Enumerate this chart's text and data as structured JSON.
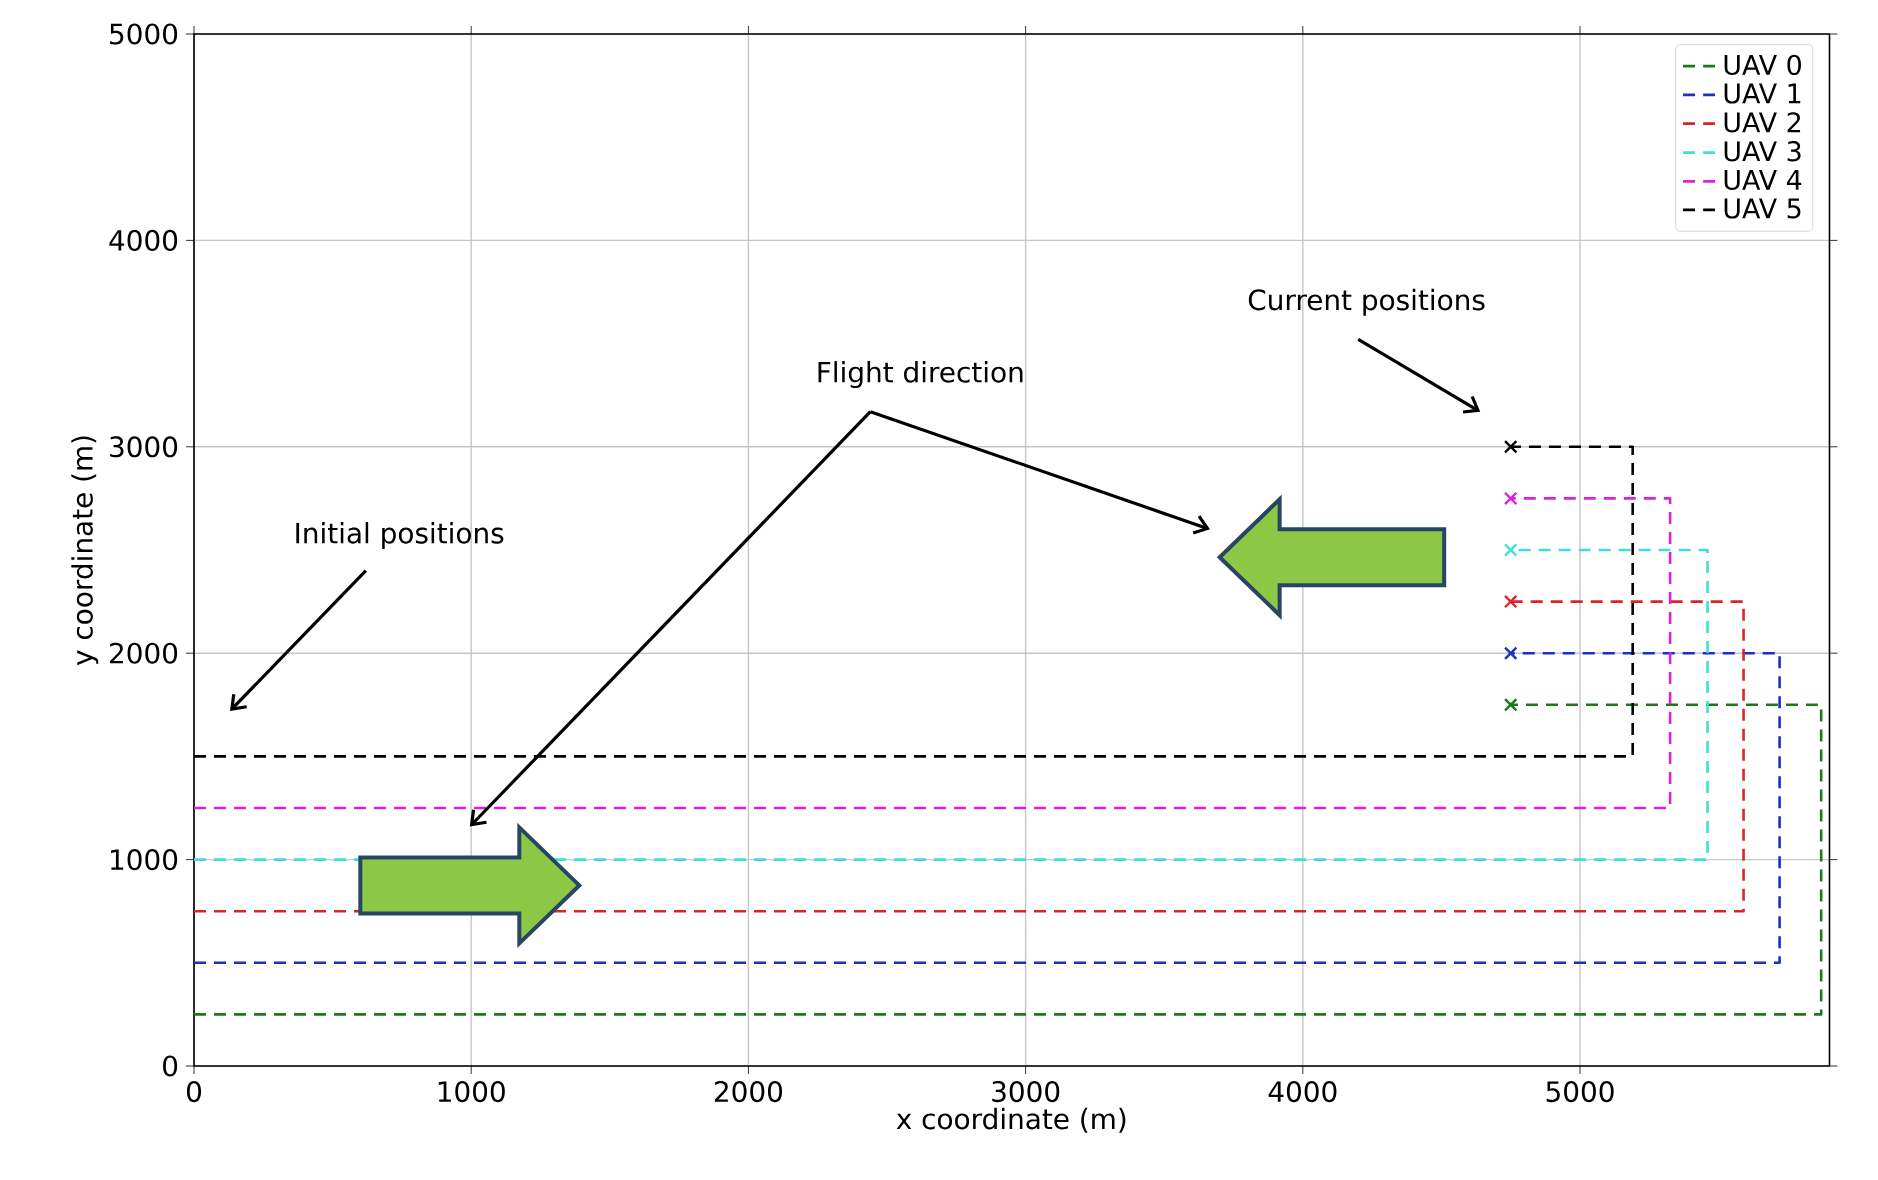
{
  "chart_data": {
    "type": "line",
    "xlabel": "x coordinate (m)",
    "ylabel": "y coordinate (m)",
    "xlim": [
      0,
      5900
    ],
    "ylim": [
      0,
      5000
    ],
    "xticks": [
      0,
      1000,
      2000,
      3000,
      4000,
      5000
    ],
    "yticks": [
      0,
      1000,
      2000,
      3000,
      4000,
      5000
    ],
    "grid": true,
    "legend": "top right",
    "line_style": "dashed",
    "series": [
      {
        "name": "UAV 0",
        "color": "#1a7a1a",
        "x": [
          0,
          5870,
          5870,
          4750
        ],
        "values": [
          250,
          250,
          1750,
          1750
        ]
      },
      {
        "name": "UAV 1",
        "color": "#1f2fbf",
        "x": [
          0,
          5720,
          5720,
          4750
        ],
        "values": [
          500,
          500,
          2000,
          2000
        ]
      },
      {
        "name": "UAV 2",
        "color": "#d62828",
        "x": [
          0,
          5590,
          5590,
          4750
        ],
        "values": [
          750,
          750,
          2250,
          2250
        ]
      },
      {
        "name": "UAV 3",
        "color": "#40e0d8",
        "x": [
          0,
          5460,
          5460,
          4750
        ],
        "values": [
          1000,
          1000,
          2500,
          2500
        ]
      },
      {
        "name": "UAV 4",
        "color": "#e020e0",
        "x": [
          0,
          5325,
          5325,
          4750
        ],
        "values": [
          1250,
          1250,
          2750,
          2750
        ]
      },
      {
        "name": "UAV 5",
        "color": "#000000",
        "x": [
          0,
          5190,
          5190,
          4750
        ],
        "values": [
          1500,
          1500,
          3000,
          3000
        ]
      },
      {
        "type": "scatter",
        "marker": "cross",
        "x": [
          4750,
          4750,
          4750,
          4750,
          4750,
          4750
        ],
        "values": [
          1750,
          2000,
          2250,
          2500,
          2750,
          3000
        ],
        "colors": [
          "#1a7a1a",
          "#1f2fbf",
          "#d62828",
          "#40e0d8",
          "#e020e0",
          "#000000"
        ]
      }
    ],
    "annotations": [
      "Initial positions",
      "Flight direction",
      "Current positions"
    ]
  }
}
